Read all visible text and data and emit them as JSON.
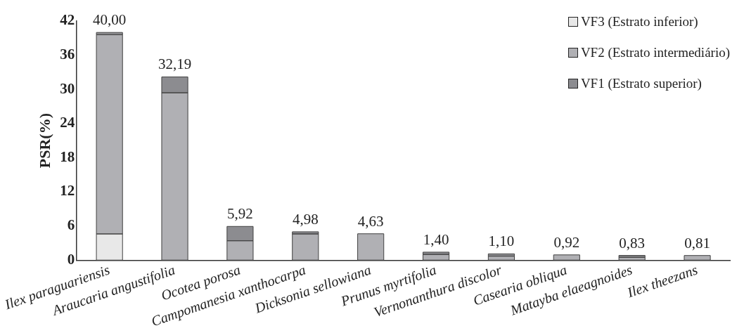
{
  "chart_data": {
    "type": "bar",
    "stacked": true,
    "ylabel": "PSR(%)",
    "categories": [
      "Ilex paraguariensis",
      "Araucaria angustifolia",
      "Ocotea porosa",
      "Campomanesia xanthocarpa",
      "Dicksonia sellowiana",
      "Prunus myrtifolia",
      "Vernonanthura discolor",
      "Casearia obliqua",
      "Matayba elaeagnoides",
      "Ilex theezans"
    ],
    "series": [
      {
        "name": "VF3 (Estrato inferior)",
        "color": "#e8e8e8",
        "values": [
          4.6,
          0,
          0,
          0,
          0,
          0,
          0,
          0,
          0,
          0
        ]
      },
      {
        "name": "VF2 (Estrato intermediário)",
        "color": "#b0b0b4",
        "values": [
          35.0,
          29.4,
          3.4,
          4.6,
          4.63,
          1.0,
          0.7,
          0.92,
          0.5,
          0.81
        ]
      },
      {
        "name": "VF1 (Estrato superior)",
        "color": "#8c8c90",
        "values": [
          0.4,
          2.79,
          2.52,
          0.38,
          0,
          0.4,
          0.4,
          0,
          0.33,
          0
        ]
      }
    ],
    "totals": [
      "40,00",
      "32,19",
      "5,92",
      "4,98",
      "4,63",
      "1,40",
      "1,10",
      "0,92",
      "0,83",
      "0,81"
    ],
    "ylim": [
      0,
      42
    ],
    "yticks": [
      0,
      6,
      12,
      18,
      24,
      30,
      36,
      42
    ],
    "grid": false,
    "legend": "top right"
  }
}
